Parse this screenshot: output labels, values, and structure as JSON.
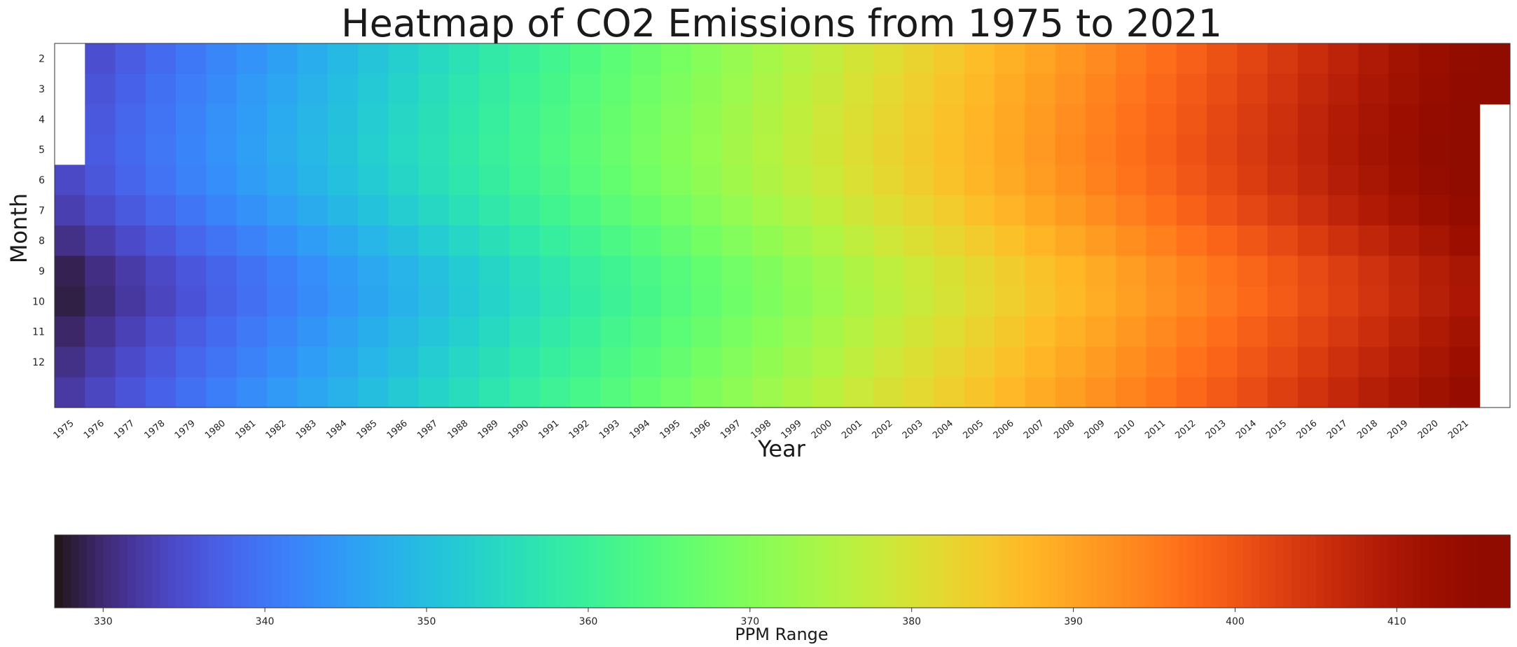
{
  "chart_data": {
    "type": "heatmap",
    "title": "Heatmap of CO2 Emissions from 1975 to 2021",
    "xlabel": "Year",
    "ylabel": "Month",
    "x_categories": [
      "1975",
      "1976",
      "1977",
      "1978",
      "1979",
      "1980",
      "1981",
      "1982",
      "1983",
      "1984",
      "1985",
      "1986",
      "1987",
      "1988",
      "1989",
      "1990",
      "1991",
      "1992",
      "1993",
      "1994",
      "1995",
      "1996",
      "1997",
      "1998",
      "1999",
      "2000",
      "2001",
      "2002",
      "2003",
      "2004",
      "2005",
      "2006",
      "2007",
      "2008",
      "2009",
      "2010",
      "2011",
      "2012",
      "2013",
      "2014",
      "2015",
      "2016",
      "2017",
      "2018",
      "2019",
      "2020",
      "2021"
    ],
    "y_tick_labels": [
      "2",
      "3",
      "4",
      "5",
      "6",
      "7",
      "8",
      "9",
      "10",
      "11",
      "12"
    ],
    "row_count": 12,
    "missing_cells": {
      "first_column_missing_rows": [
        0,
        1,
        2,
        3
      ],
      "last_column_missing_rows": [
        2,
        3,
        4,
        5,
        6,
        7,
        8,
        9,
        10,
        11
      ]
    },
    "approx_monthly_pattern": [
      1.5,
      2.2,
      2.8,
      3.1,
      2.6,
      1.2,
      -0.8,
      -2.8,
      -3.2,
      -2.0,
      -0.8,
      0.5
    ],
    "approx_yearly_baseline_start": 331.5,
    "approx_yearly_growth_per_year": 1.78,
    "colorbar": {
      "label": "PPM Range",
      "range": [
        327,
        417
      ],
      "ticks": [
        330,
        340,
        350,
        360,
        370,
        380,
        390,
        400,
        410
      ],
      "colormap": "turbo"
    }
  }
}
